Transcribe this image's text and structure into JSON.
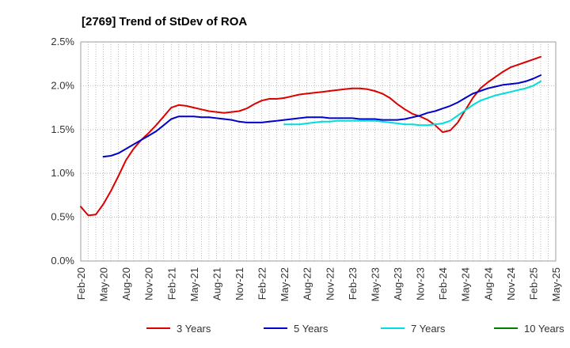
{
  "chart_data": {
    "type": "line",
    "title": "[2769]  Trend of StDev of ROA",
    "xlabel": "",
    "ylabel": "",
    "ylim": [
      0,
      2.5
    ],
    "y_ticks": [
      "0.0%",
      "0.5%",
      "1.0%",
      "1.5%",
      "2.0%",
      "2.5%"
    ],
    "y_tick_values": [
      0,
      0.5,
      1.0,
      1.5,
      2.0,
      2.5
    ],
    "x_ticks": [
      "Feb-20",
      "May-20",
      "Aug-20",
      "Nov-20",
      "Feb-21",
      "May-21",
      "Aug-21",
      "Nov-21",
      "Feb-22",
      "May-22",
      "Aug-22",
      "Nov-22",
      "Feb-23",
      "May-23",
      "Aug-23",
      "Nov-23",
      "Feb-24",
      "May-24",
      "Aug-24",
      "Nov-24",
      "Feb-25",
      "May-25"
    ],
    "x_start": "Feb-20",
    "grid": true,
    "legend_position": "bottom",
    "series": [
      {
        "name": "3 Years",
        "color": "#dd0000",
        "points": [
          [
            "Feb-20",
            0.62
          ],
          [
            "Mar-20",
            0.52
          ],
          [
            "Apr-20",
            0.53
          ],
          [
            "May-20",
            0.65
          ],
          [
            "Jun-20",
            0.8
          ],
          [
            "Jul-20",
            0.97
          ],
          [
            "Aug-20",
            1.15
          ],
          [
            "Sep-20",
            1.28
          ],
          [
            "Oct-20",
            1.38
          ],
          [
            "Nov-20",
            1.46
          ],
          [
            "Dec-20",
            1.55
          ],
          [
            "Jan-21",
            1.65
          ],
          [
            "Feb-21",
            1.75
          ],
          [
            "Mar-21",
            1.78
          ],
          [
            "Apr-21",
            1.77
          ],
          [
            "May-21",
            1.75
          ],
          [
            "Jun-21",
            1.73
          ],
          [
            "Jul-21",
            1.71
          ],
          [
            "Aug-21",
            1.7
          ],
          [
            "Sep-21",
            1.69
          ],
          [
            "Oct-21",
            1.7
          ],
          [
            "Nov-21",
            1.71
          ],
          [
            "Dec-21",
            1.74
          ],
          [
            "Jan-22",
            1.79
          ],
          [
            "Feb-22",
            1.83
          ],
          [
            "Mar-22",
            1.85
          ],
          [
            "Apr-22",
            1.85
          ],
          [
            "May-22",
            1.86
          ],
          [
            "Jun-22",
            1.88
          ],
          [
            "Jul-22",
            1.9
          ],
          [
            "Aug-22",
            1.91
          ],
          [
            "Sep-22",
            1.92
          ],
          [
            "Oct-22",
            1.93
          ],
          [
            "Nov-22",
            1.94
          ],
          [
            "Dec-22",
            1.95
          ],
          [
            "Jan-23",
            1.96
          ],
          [
            "Feb-23",
            1.97
          ],
          [
            "Mar-23",
            1.97
          ],
          [
            "Apr-23",
            1.96
          ],
          [
            "May-23",
            1.94
          ],
          [
            "Jun-23",
            1.91
          ],
          [
            "Jul-23",
            1.86
          ],
          [
            "Aug-23",
            1.79
          ],
          [
            "Sep-23",
            1.73
          ],
          [
            "Oct-23",
            1.68
          ],
          [
            "Nov-23",
            1.65
          ],
          [
            "Dec-23",
            1.61
          ],
          [
            "Jan-24",
            1.55
          ],
          [
            "Feb-24",
            1.47
          ],
          [
            "Mar-24",
            1.49
          ],
          [
            "Apr-24",
            1.58
          ],
          [
            "May-24",
            1.72
          ],
          [
            "Jun-24",
            1.86
          ],
          [
            "Jul-24",
            1.97
          ],
          [
            "Aug-24",
            2.04
          ],
          [
            "Sep-24",
            2.1
          ],
          [
            "Oct-24",
            2.16
          ],
          [
            "Nov-24",
            2.21
          ],
          [
            "Dec-24",
            2.24
          ],
          [
            "Jan-25",
            2.27
          ],
          [
            "Feb-25",
            2.3
          ],
          [
            "Mar-25",
            2.33
          ]
        ]
      },
      {
        "name": "5 Years",
        "color": "#0000cc",
        "points": [
          [
            "May-20",
            1.19
          ],
          [
            "Jun-20",
            1.2
          ],
          [
            "Jul-20",
            1.23
          ],
          [
            "Aug-20",
            1.28
          ],
          [
            "Sep-20",
            1.33
          ],
          [
            "Oct-20",
            1.38
          ],
          [
            "Nov-20",
            1.43
          ],
          [
            "Dec-20",
            1.48
          ],
          [
            "Jan-21",
            1.55
          ],
          [
            "Feb-21",
            1.62
          ],
          [
            "Mar-21",
            1.65
          ],
          [
            "Apr-21",
            1.65
          ],
          [
            "May-21",
            1.65
          ],
          [
            "Jun-21",
            1.64
          ],
          [
            "Jul-21",
            1.64
          ],
          [
            "Aug-21",
            1.63
          ],
          [
            "Sep-21",
            1.62
          ],
          [
            "Oct-21",
            1.61
          ],
          [
            "Nov-21",
            1.59
          ],
          [
            "Dec-21",
            1.58
          ],
          [
            "Jan-22",
            1.58
          ],
          [
            "Feb-22",
            1.58
          ],
          [
            "Mar-22",
            1.59
          ],
          [
            "Apr-22",
            1.6
          ],
          [
            "May-22",
            1.61
          ],
          [
            "Jun-22",
            1.62
          ],
          [
            "Jul-22",
            1.63
          ],
          [
            "Aug-22",
            1.64
          ],
          [
            "Sep-22",
            1.64
          ],
          [
            "Oct-22",
            1.64
          ],
          [
            "Nov-22",
            1.63
          ],
          [
            "Dec-22",
            1.63
          ],
          [
            "Jan-23",
            1.63
          ],
          [
            "Feb-23",
            1.63
          ],
          [
            "Mar-23",
            1.62
          ],
          [
            "Apr-23",
            1.62
          ],
          [
            "May-23",
            1.62
          ],
          [
            "Jun-23",
            1.61
          ],
          [
            "Jul-23",
            1.61
          ],
          [
            "Aug-23",
            1.61
          ],
          [
            "Sep-23",
            1.62
          ],
          [
            "Oct-23",
            1.64
          ],
          [
            "Nov-23",
            1.66
          ],
          [
            "Dec-23",
            1.69
          ],
          [
            "Jan-24",
            1.71
          ],
          [
            "Feb-24",
            1.74
          ],
          [
            "Mar-24",
            1.77
          ],
          [
            "Apr-24",
            1.81
          ],
          [
            "May-24",
            1.86
          ],
          [
            "Jun-24",
            1.91
          ],
          [
            "Jul-24",
            1.94
          ],
          [
            "Aug-24",
            1.97
          ],
          [
            "Sep-24",
            1.99
          ],
          [
            "Oct-24",
            2.01
          ],
          [
            "Nov-24",
            2.02
          ],
          [
            "Dec-24",
            2.03
          ],
          [
            "Jan-25",
            2.05
          ],
          [
            "Feb-25",
            2.08
          ],
          [
            "Mar-25",
            2.12
          ]
        ]
      },
      {
        "name": "7 Years",
        "color": "#00dddd",
        "points": [
          [
            "May-22",
            1.56
          ],
          [
            "Jun-22",
            1.56
          ],
          [
            "Jul-22",
            1.56
          ],
          [
            "Aug-22",
            1.57
          ],
          [
            "Sep-22",
            1.58
          ],
          [
            "Oct-22",
            1.59
          ],
          [
            "Nov-22",
            1.59
          ],
          [
            "Dec-22",
            1.6
          ],
          [
            "Jan-23",
            1.6
          ],
          [
            "Feb-23",
            1.6
          ],
          [
            "Mar-23",
            1.6
          ],
          [
            "Apr-23",
            1.6
          ],
          [
            "May-23",
            1.6
          ],
          [
            "Jun-23",
            1.59
          ],
          [
            "Jul-23",
            1.58
          ],
          [
            "Aug-23",
            1.57
          ],
          [
            "Sep-23",
            1.56
          ],
          [
            "Oct-23",
            1.56
          ],
          [
            "Nov-23",
            1.55
          ],
          [
            "Dec-23",
            1.55
          ],
          [
            "Jan-24",
            1.56
          ],
          [
            "Feb-24",
            1.57
          ],
          [
            "Mar-24",
            1.6
          ],
          [
            "Apr-24",
            1.66
          ],
          [
            "May-24",
            1.72
          ],
          [
            "Jun-24",
            1.78
          ],
          [
            "Jul-24",
            1.83
          ],
          [
            "Aug-24",
            1.86
          ],
          [
            "Sep-24",
            1.89
          ],
          [
            "Oct-24",
            1.91
          ],
          [
            "Nov-24",
            1.93
          ],
          [
            "Dec-24",
            1.95
          ],
          [
            "Jan-25",
            1.97
          ],
          [
            "Feb-25",
            2.0
          ],
          [
            "Mar-25",
            2.05
          ]
        ]
      },
      {
        "name": "10 Years",
        "color": "#008000",
        "points": []
      }
    ]
  }
}
